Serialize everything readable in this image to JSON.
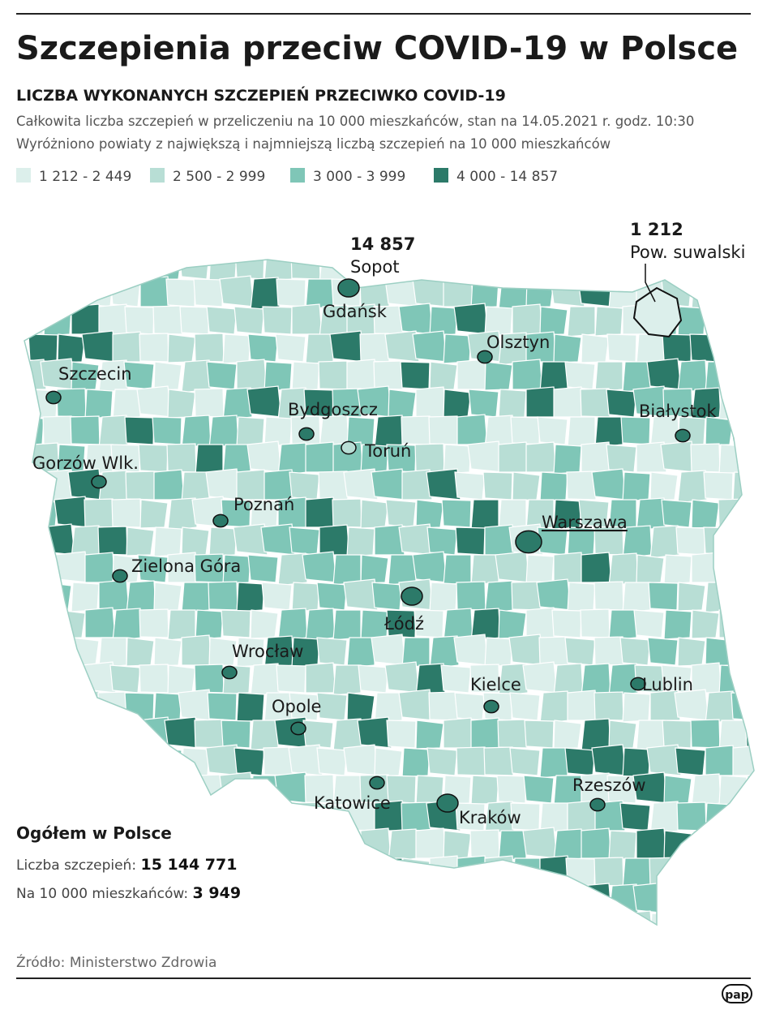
{
  "header": {
    "title": "Szczepienia przeciw COVID-19 w Polsce",
    "subtitle": "LICZBA WYKONANYCH SZCZEPIEŃ PRZECIWKO COVID-19",
    "description": [
      "Całkowita liczba szczepień w przeliczeniu na 10 000 mieszkańców, stan na 14.05.2021 r. godz. 10:30",
      "Wyróżniono powiaty z największą i najmniejszą liczbą szczepień na 10 000 mieszkańców"
    ]
  },
  "legend": [
    {
      "label": "1 212 - 2 449",
      "color": "#dcefeb"
    },
    {
      "label": "2 500 - 2 999",
      "color": "#b8ded5"
    },
    {
      "label": "3 000 - 3 999",
      "color": "#7fc6b7"
    },
    {
      "label": "4 000 - 14  857",
      "color": "#2c7a69"
    }
  ],
  "map": {
    "highest": {
      "value": "14 857",
      "name": "Sopot"
    },
    "lowest": {
      "value": "1 212",
      "name": "Pow. suwalski"
    },
    "cities": [
      "Gdańsk",
      "Olsztyn",
      "Szczecin",
      "Bydgoszcz",
      "Białystok",
      "Toruń",
      "Gorzów Wlk.",
      "Poznań",
      "Warszawa",
      "Zielona Góra",
      "Łódź",
      "Wrocław",
      "Kielce",
      "Lublin",
      "Opole",
      "Rzeszów",
      "Katowice",
      "Kraków"
    ]
  },
  "summary": {
    "heading": "Ogółem w Polsce",
    "rows": [
      {
        "label": "Liczba szczepień:",
        "value": "15 144 771"
      },
      {
        "label": "Na 10 000 mieszkańców:",
        "value": "3 949"
      }
    ]
  },
  "source": "Źródło: Ministerstwo Zdrowia",
  "logo": "pap"
}
